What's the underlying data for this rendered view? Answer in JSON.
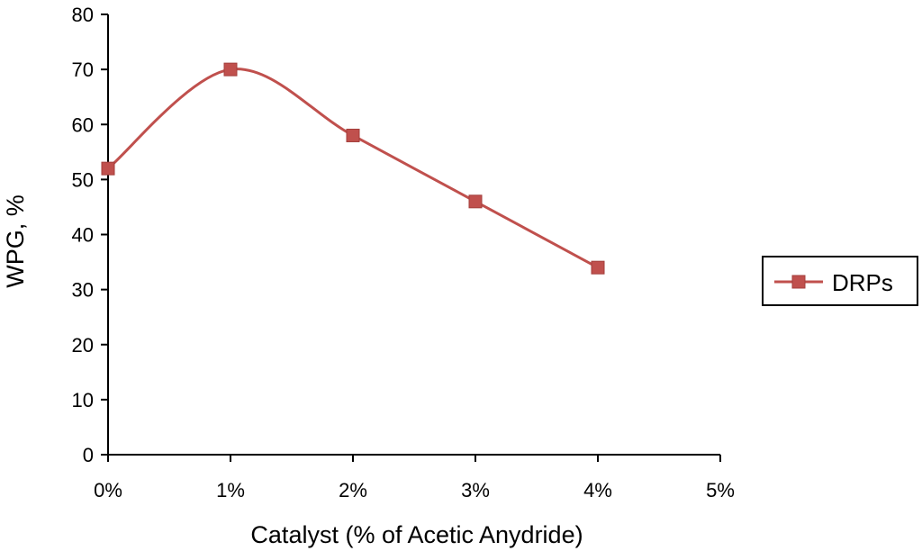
{
  "chart_data": {
    "type": "line",
    "title": "",
    "xlabel": "Catalyst (% of Acetic Anydride)",
    "ylabel": "WPG, %",
    "x": [
      0,
      1,
      2,
      3,
      4
    ],
    "x_tick_labels": [
      "0%",
      "1%",
      "2%",
      "3%",
      "4%",
      "5%"
    ],
    "x_ticks": [
      0,
      1,
      2,
      3,
      4,
      5
    ],
    "xlim": [
      0,
      5
    ],
    "ylim": [
      0,
      80
    ],
    "y_ticks": [
      0,
      10,
      20,
      30,
      40,
      50,
      60,
      70,
      80
    ],
    "y_tick_labels": [
      "0",
      "10",
      "20",
      "30",
      "40",
      "50",
      "60",
      "70",
      "80"
    ],
    "grid": false,
    "smoothed": true,
    "legend_position": "right",
    "series": [
      {
        "name": "DRPs",
        "values": [
          52,
          70,
          58,
          46,
          34
        ],
        "color": "#c0504d",
        "marker": "square"
      }
    ]
  }
}
